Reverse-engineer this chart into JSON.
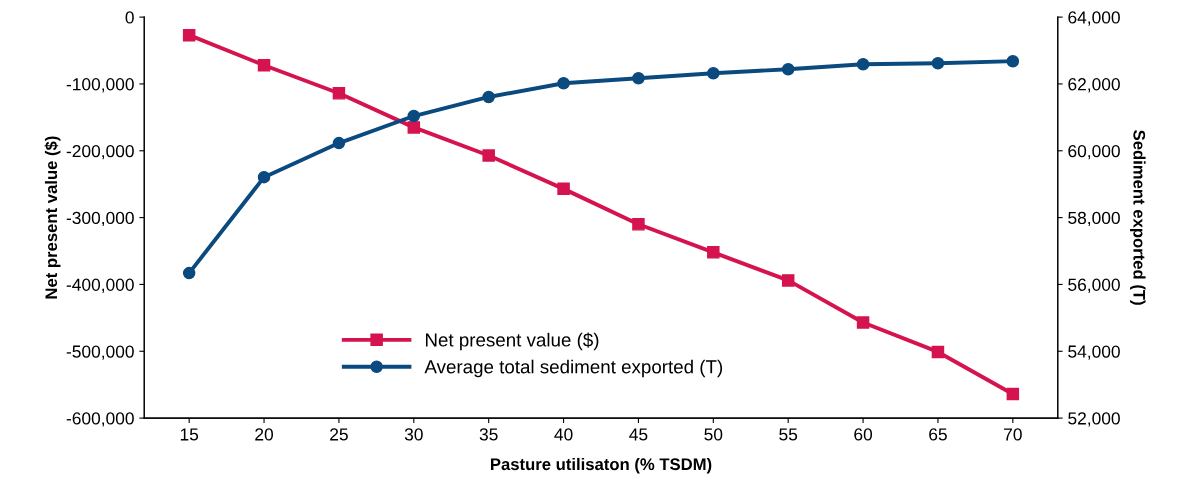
{
  "chart_data": {
    "type": "line",
    "xlabel": "Pasture utilisaton (% TSDM)",
    "ylabel": "Net present value ($)",
    "y2label": "Sediment exported (T)",
    "categories": [
      "15",
      "20",
      "25",
      "30",
      "35",
      "40",
      "45",
      "50",
      "55",
      "60",
      "65",
      "70"
    ],
    "series": [
      {
        "name": "Net present value ($)",
        "color": "#d5134f",
        "marker": "square",
        "values": [
          -27000,
          -72000,
          -114000,
          -165000,
          -207000,
          -257000,
          -310000,
          -352000,
          -394000,
          -457000,
          -501000,
          -564000
        ]
      },
      {
        "name": "Average total sediment exported (T)",
        "color": "#0b4a7e",
        "marker": "circle",
        "axis": "y2",
        "values": [
          56340,
          59210,
          60230,
          61040,
          61610,
          62020,
          62170,
          62320,
          62440,
          62590,
          62620,
          62680
        ]
      }
    ],
    "ylim": [
      -600000,
      0
    ],
    "yticks": [
      {
        "value": -600000,
        "label": "-600,000"
      },
      {
        "value": -500000,
        "label": "-500,000"
      },
      {
        "value": -400000,
        "label": "-400,000"
      },
      {
        "value": -300000,
        "label": "-300,000"
      },
      {
        "value": -200000,
        "label": "-200,000"
      },
      {
        "value": -100000,
        "label": "-100,000"
      },
      0
    ],
    "y2lim": [
      52000,
      64000
    ],
    "y2ticks": [
      {
        "value": 52000,
        "label": "52,000"
      },
      {
        "value": 54000,
        "label": "54,000"
      },
      {
        "value": 56000,
        "label": "56,000"
      },
      {
        "value": 58000,
        "label": "58,000"
      },
      {
        "value": 60000,
        "label": "60,000"
      },
      {
        "value": 62000,
        "label": "62,000"
      },
      {
        "value": 64000,
        "label": "64,000"
      }
    ],
    "grid": false,
    "legend": "bottom left",
    "line_style": "solid"
  }
}
